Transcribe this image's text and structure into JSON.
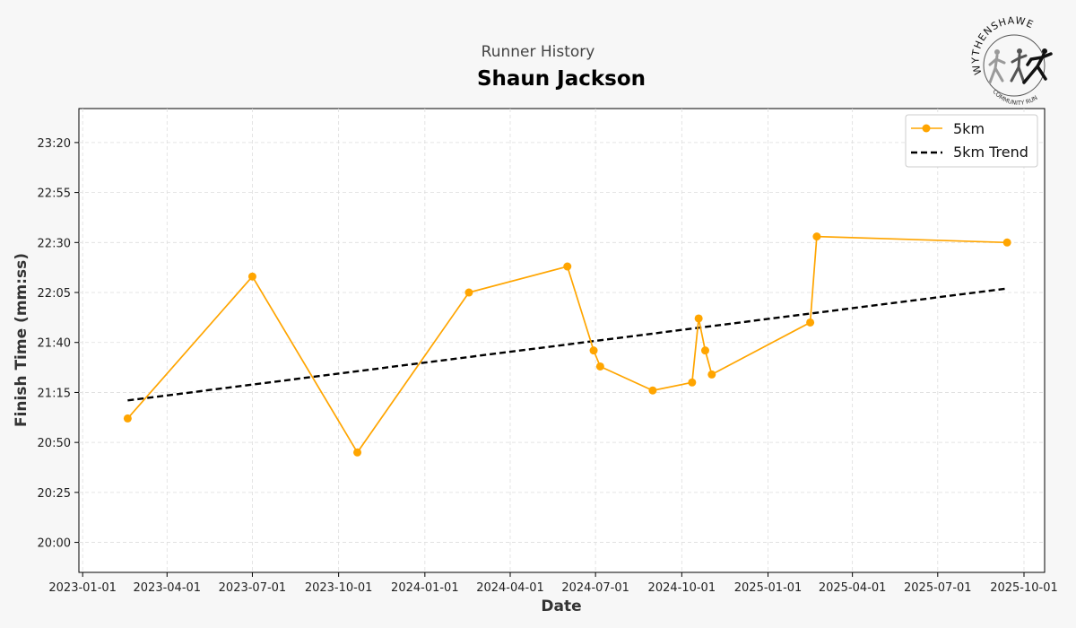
{
  "chart_data": {
    "type": "line",
    "subtitle": "Runner History",
    "title": "Shaun Jackson",
    "xlabel": "Date",
    "ylabel": "Finish Time (mm:ss)",
    "x_ticks": [
      "2023-01-01",
      "2023-04-01",
      "2023-07-01",
      "2023-10-01",
      "2024-01-01",
      "2024-04-01",
      "2024-07-01",
      "2024-10-01",
      "2025-01-01",
      "2025-04-01",
      "2025-07-01",
      "2025-10-01"
    ],
    "y_ticks": [
      "20:00",
      "20:25",
      "20:50",
      "21:15",
      "21:40",
      "22:05",
      "22:30",
      "22:55",
      "23:20"
    ],
    "xlim": [
      "2022-12-28",
      "2025-10-23"
    ],
    "ylim_seconds": [
      1185,
      1417
    ],
    "grid": true,
    "legend_position": "top-right",
    "series": [
      {
        "name": "5km",
        "color": "#FFA500",
        "style": "solid-markers",
        "points": [
          {
            "date": "2023-02-18",
            "time": "21:02"
          },
          {
            "date": "2023-07-01",
            "time": "22:13"
          },
          {
            "date": "2023-10-21",
            "time": "20:45"
          },
          {
            "date": "2024-02-17",
            "time": "22:05"
          },
          {
            "date": "2024-06-01",
            "time": "22:18"
          },
          {
            "date": "2024-06-29",
            "time": "21:36"
          },
          {
            "date": "2024-07-06",
            "time": "21:28"
          },
          {
            "date": "2024-08-31",
            "time": "21:16"
          },
          {
            "date": "2024-10-12",
            "time": "21:20"
          },
          {
            "date": "2024-10-19",
            "time": "21:52"
          },
          {
            "date": "2024-10-26",
            "time": "21:36"
          },
          {
            "date": "2024-11-02",
            "time": "21:24"
          },
          {
            "date": "2025-02-15",
            "time": "21:50"
          },
          {
            "date": "2025-02-22",
            "time": "22:33"
          },
          {
            "date": "2025-09-13",
            "time": "22:30"
          }
        ]
      },
      {
        "name": "5km Trend",
        "color": "#000000",
        "style": "dashed",
        "points": [
          {
            "date": "2023-02-18",
            "time": "21:11"
          },
          {
            "date": "2025-09-13",
            "time": "22:07"
          }
        ]
      }
    ]
  },
  "logo": {
    "arc_text": "WYTHENSHAWE",
    "sub_text": "COMMUNITY RUN"
  }
}
